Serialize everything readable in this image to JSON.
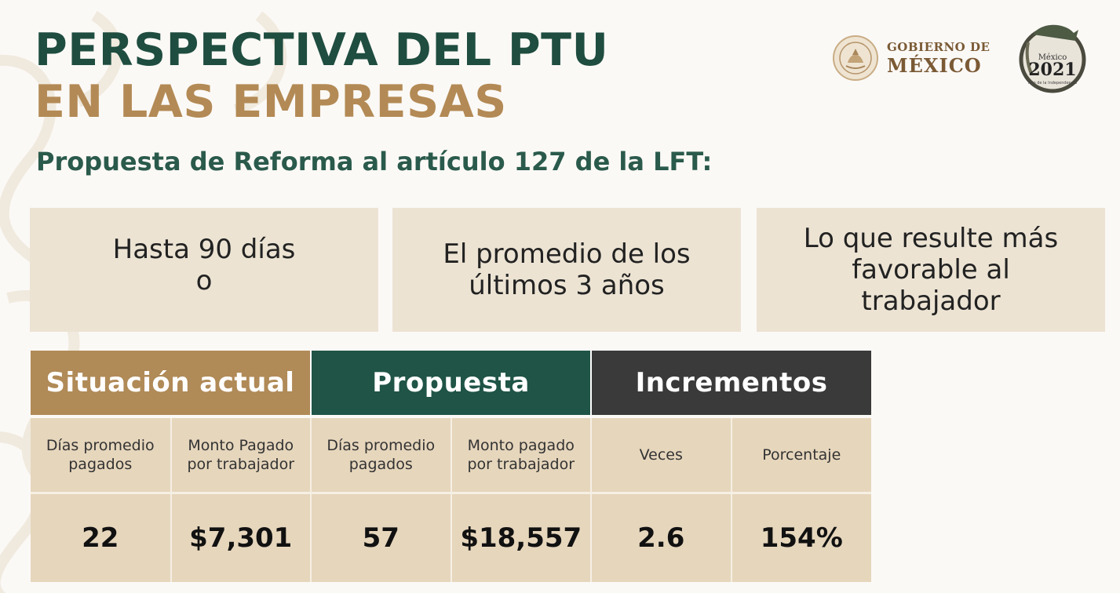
{
  "title": {
    "line1": "PERSPECTIVA DEL PTU",
    "line2": "EN LAS EMPRESAS"
  },
  "subtitle": "Propuesta de Reforma al artículo 127 de la LFT:",
  "logos": {
    "gobierno_line1": "GOBIERNO DE",
    "gobierno_line2": "MÉXICO",
    "badge_line1": "México",
    "badge_year": "2021",
    "badge_caption": "Año de la Independencia"
  },
  "boxes": [
    {
      "text": "Hasta 90 días\no"
    },
    {
      "text": "El promedio de los\núltimos 3 años"
    },
    {
      "text": "Lo que resulte más\nfavorable al\ntrabajador"
    }
  ],
  "table": {
    "groups": [
      "Situación actual",
      "Propuesta",
      "Incrementos"
    ],
    "columns": [
      "Días promedio\npagados",
      "Monto Pagado\npor trabajador",
      "Días promedio\npagados",
      "Monto pagado\npor trabajador",
      "Veces",
      "Porcentaje"
    ],
    "values": [
      "22",
      "$7,301",
      "57",
      "$18,557",
      "2.6",
      "154%"
    ]
  },
  "colors": {
    "green": "#1f4d40",
    "gold": "#b38a55",
    "dark": "#3a3a3a",
    "cell_bg": "#e6d6bc",
    "box_bg": "#ece3d3"
  }
}
